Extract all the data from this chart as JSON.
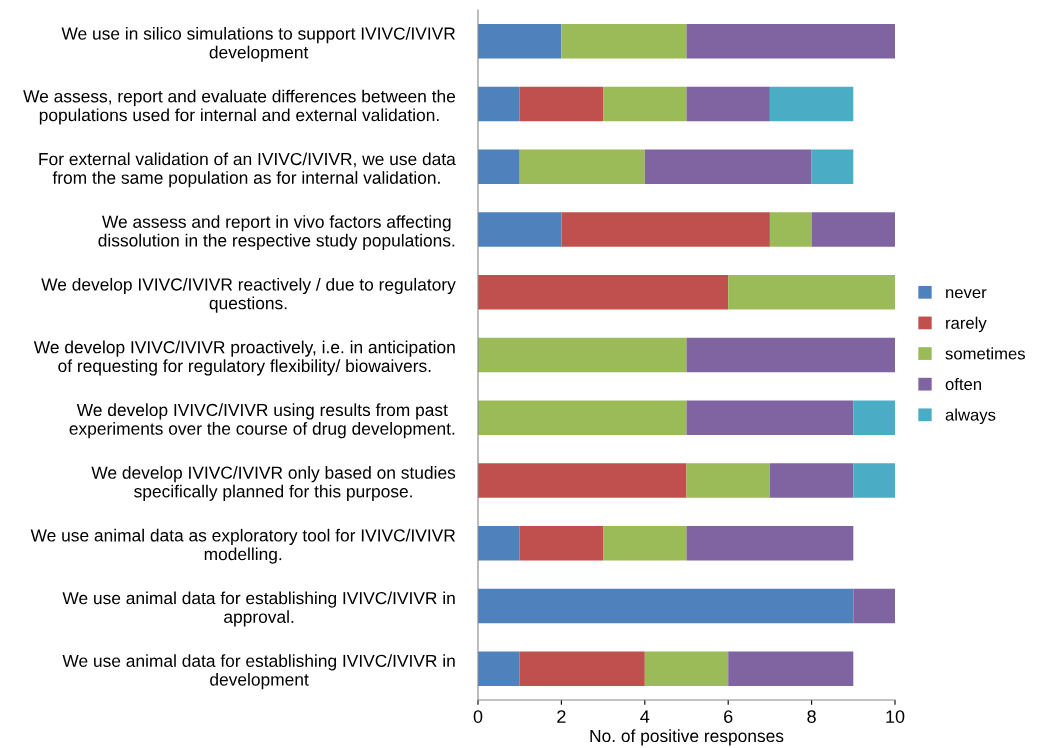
{
  "chart_data": {
    "type": "bar",
    "orientation": "horizontal",
    "stacked": true,
    "xlabel": "No. of positive responses",
    "categories": [
      "We use in silico simulations to support IVIVC/IVIVR\ndevelopment",
      "We assess, report and evaluate differences between the\npopulations used for internal and external validation.",
      "For external validation of an IVIVC/IVIVR, we use data\nfrom the same population as for internal validation.",
      "We assess and report in vivo factors affecting\ndissolution in the respective study populations.",
      "We develop IVIVC/IVIVR reactively / due to regulatory\nquestions.",
      "We develop IVIVC/IVIVR proactively, i.e. in anticipation\nof requesting for regulatory flexibility/ biowaivers.",
      "We develop IVIVC/IVIVR using results from past\nexperiments over the course of drug development.",
      "We develop IVIVC/IVIVR only based on studies\nspecifically planned for this purpose.",
      "We use animal data as exploratory tool for IVIVC/IVIVR\nmodelling.",
      "We use animal data for establishing IVIVC/IVIVR in\napproval.",
      "We use animal data for establishing IVIVC/IVIVR in\ndevelopment"
    ],
    "series": [
      {
        "name": "never",
        "color": "#4f81bd",
        "values": [
          2,
          1,
          1,
          2,
          0,
          0,
          0,
          0,
          1,
          9,
          1
        ]
      },
      {
        "name": "rarely",
        "color": "#c0504d",
        "values": [
          0,
          2,
          0,
          5,
          6,
          0,
          0,
          5,
          2,
          0,
          3
        ]
      },
      {
        "name": "sometimes",
        "color": "#9bbb59",
        "values": [
          3,
          2,
          3,
          1,
          4,
          5,
          5,
          2,
          2,
          0,
          2
        ]
      },
      {
        "name": "often",
        "color": "#8064a2",
        "values": [
          5,
          2,
          4,
          2,
          0,
          5,
          4,
          2,
          4,
          1,
          3
        ]
      },
      {
        "name": "always",
        "color": "#4bacc6",
        "values": [
          0,
          2,
          1,
          0,
          0,
          0,
          1,
          1,
          0,
          0,
          0
        ]
      }
    ],
    "xlim": [
      0,
      10
    ],
    "xticks": [
      0,
      2,
      4,
      6,
      8,
      10
    ],
    "grid": false,
    "legend": "right"
  }
}
